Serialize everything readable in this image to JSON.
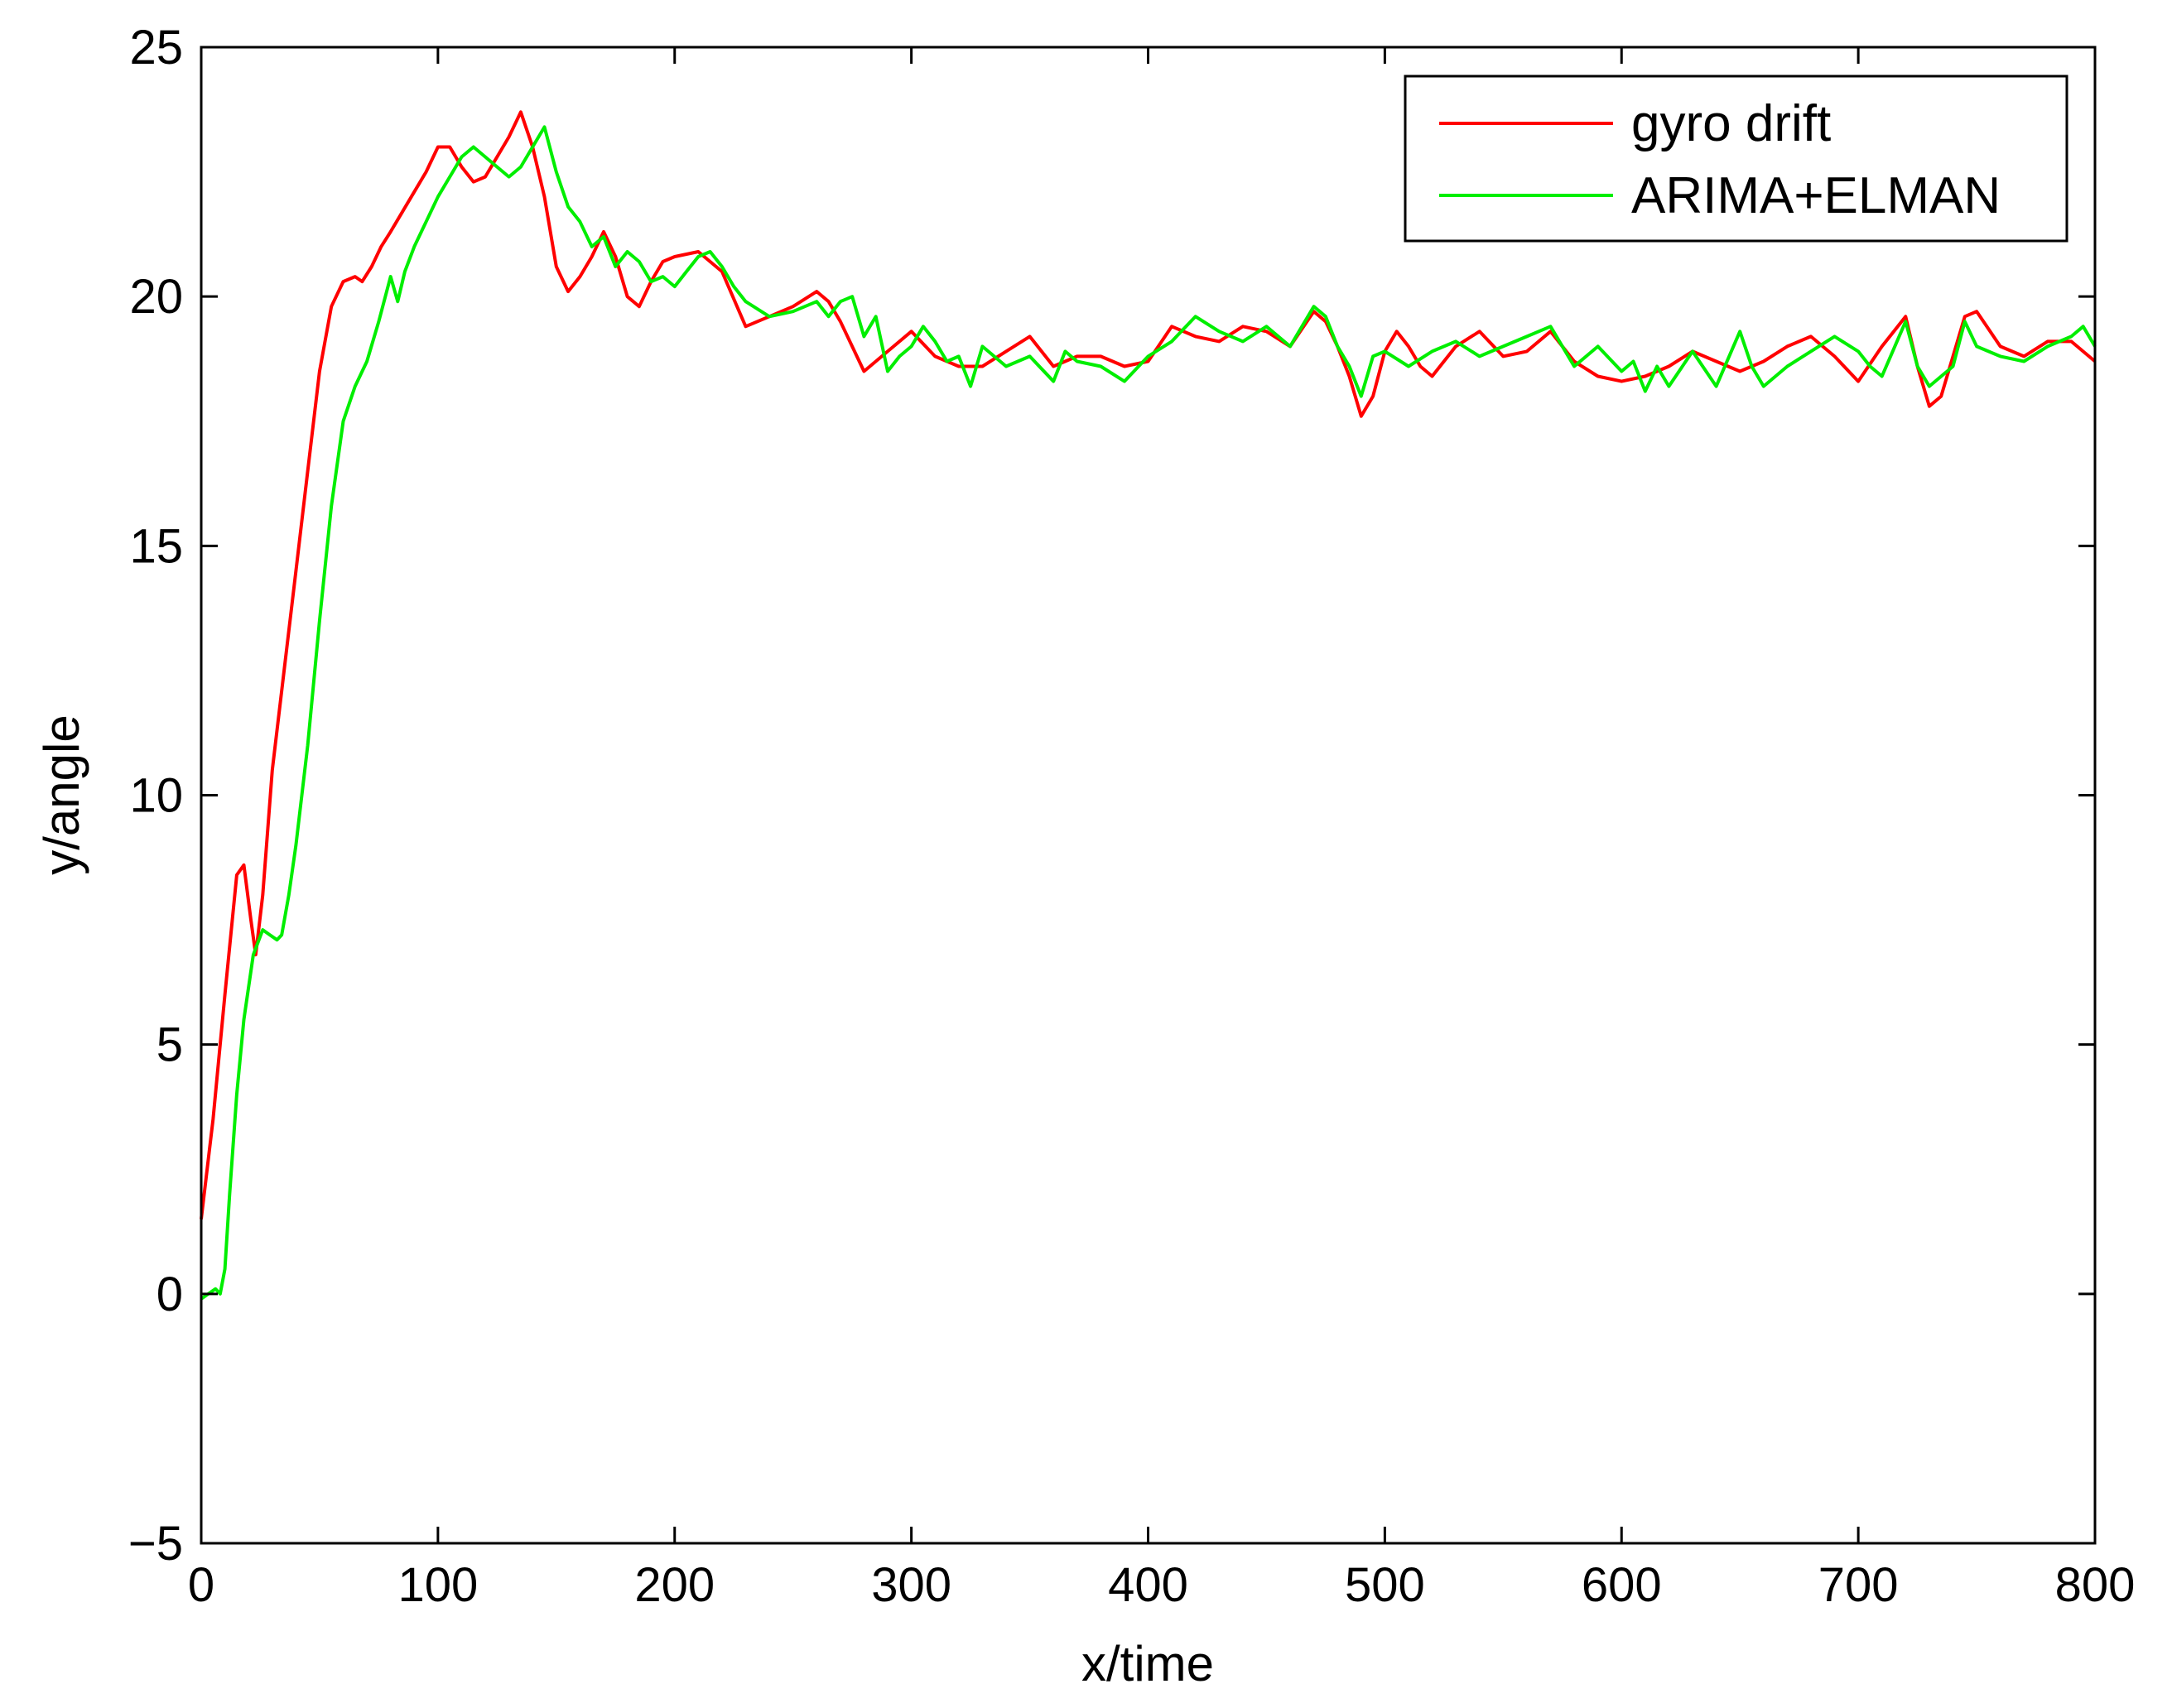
{
  "chart_data": {
    "type": "line",
    "xlabel": "x/time",
    "ylabel": "y/angle",
    "xlim": [
      0,
      800
    ],
    "ylim": [
      -5,
      25
    ],
    "xticks": [
      0,
      100,
      200,
      300,
      400,
      500,
      600,
      700,
      800
    ],
    "yticks": [
      -5,
      0,
      5,
      10,
      15,
      20,
      25
    ],
    "ytick_labels": [
      "−5",
      "0",
      "5",
      "10",
      "15",
      "20",
      "25"
    ],
    "grid": false,
    "legend_position": "top-right",
    "series": [
      {
        "name": "gyro drift",
        "color": "#ff0000",
        "x": [
          0,
          5,
          10,
          15,
          18,
          21,
          23,
          26,
          30,
          35,
          40,
          45,
          50,
          55,
          60,
          65,
          68,
          72,
          76,
          80,
          85,
          90,
          95,
          100,
          105,
          110,
          115,
          120,
          125,
          130,
          135,
          140,
          145,
          150,
          155,
          160,
          165,
          170,
          175,
          180,
          185,
          190,
          195,
          200,
          210,
          220,
          230,
          240,
          250,
          260,
          265,
          270,
          280,
          290,
          300,
          310,
          320,
          330,
          340,
          350,
          360,
          370,
          380,
          390,
          400,
          410,
          420,
          430,
          440,
          450,
          460,
          470,
          475,
          480,
          485,
          490,
          495,
          500,
          505,
          510,
          515,
          520,
          530,
          540,
          550,
          560,
          570,
          580,
          590,
          600,
          610,
          620,
          630,
          640,
          650,
          660,
          670,
          680,
          690,
          700,
          710,
          720,
          725,
          730,
          735,
          740,
          745,
          750,
          760,
          770,
          780,
          790,
          800
        ],
        "values": [
          1.5,
          3.5,
          6.0,
          8.4,
          8.6,
          7.5,
          6.8,
          8.0,
          10.5,
          12.5,
          14.5,
          16.5,
          18.5,
          19.8,
          20.3,
          20.4,
          20.3,
          20.6,
          21.0,
          21.3,
          21.7,
          22.1,
          22.5,
          23.0,
          23.0,
          22.6,
          22.3,
          22.4,
          22.8,
          23.2,
          23.7,
          23.0,
          22.0,
          20.6,
          20.1,
          20.4,
          20.8,
          21.3,
          20.8,
          20.0,
          19.8,
          20.3,
          20.7,
          20.8,
          20.9,
          20.5,
          19.4,
          19.6,
          19.8,
          20.1,
          19.9,
          19.5,
          18.5,
          18.9,
          19.3,
          18.8,
          18.6,
          18.6,
          18.9,
          19.2,
          18.6,
          18.8,
          18.8,
          18.6,
          18.7,
          19.4,
          19.2,
          19.1,
          19.4,
          19.3,
          19.0,
          19.7,
          19.5,
          19.0,
          18.4,
          17.6,
          18.0,
          18.9,
          19.3,
          19.0,
          18.6,
          18.4,
          19.0,
          19.3,
          18.8,
          18.9,
          19.3,
          18.7,
          18.4,
          18.3,
          18.4,
          18.6,
          18.9,
          18.7,
          18.5,
          18.7,
          19.0,
          19.2,
          18.8,
          18.3,
          19.0,
          19.6,
          18.6,
          17.8,
          18.0,
          18.8,
          19.6,
          19.7,
          19.0,
          18.8,
          19.1,
          19.1,
          18.7
        ]
      },
      {
        "name": "ARIMA+ELMAN",
        "color": "#00ee00",
        "x": [
          0,
          3,
          6,
          8,
          10,
          12,
          15,
          18,
          22,
          26,
          29,
          32,
          34,
          37,
          40,
          45,
          50,
          55,
          60,
          65,
          70,
          75,
          80,
          83,
          86,
          90,
          95,
          100,
          105,
          110,
          115,
          120,
          125,
          130,
          135,
          140,
          145,
          150,
          155,
          160,
          165,
          170,
          175,
          180,
          185,
          190,
          195,
          200,
          205,
          210,
          215,
          220,
          225,
          230,
          240,
          250,
          260,
          265,
          270,
          275,
          280,
          285,
          290,
          295,
          300,
          305,
          310,
          315,
          320,
          325,
          330,
          340,
          350,
          360,
          365,
          370,
          380,
          390,
          400,
          410,
          420,
          430,
          440,
          450,
          460,
          470,
          475,
          480,
          485,
          490,
          495,
          500,
          510,
          520,
          530,
          540,
          550,
          560,
          570,
          580,
          590,
          600,
          605,
          610,
          615,
          620,
          630,
          640,
          650,
          655,
          660,
          670,
          680,
          690,
          700,
          705,
          710,
          720,
          725,
          730,
          740,
          745,
          750,
          760,
          770,
          780,
          790,
          795,
          800
        ],
        "values": [
          -0.1,
          0.0,
          0.1,
          0.0,
          0.5,
          2.0,
          4.0,
          5.5,
          6.8,
          7.3,
          7.2,
          7.1,
          7.2,
          8.0,
          9.0,
          11.0,
          13.5,
          15.8,
          17.5,
          18.2,
          18.7,
          19.5,
          20.4,
          19.9,
          20.5,
          21.0,
          21.5,
          22.0,
          22.4,
          22.8,
          23.0,
          22.8,
          22.6,
          22.4,
          22.6,
          23.0,
          23.4,
          22.5,
          21.8,
          21.5,
          21.0,
          21.2,
          20.6,
          20.9,
          20.7,
          20.3,
          20.4,
          20.2,
          20.5,
          20.8,
          20.9,
          20.6,
          20.2,
          19.9,
          19.6,
          19.7,
          19.9,
          19.6,
          19.9,
          20.0,
          19.2,
          19.6,
          18.5,
          18.8,
          19.0,
          19.4,
          19.1,
          18.7,
          18.8,
          18.2,
          19.0,
          18.6,
          18.8,
          18.3,
          18.9,
          18.7,
          18.6,
          18.3,
          18.8,
          19.1,
          19.6,
          19.3,
          19.1,
          19.4,
          19.0,
          19.8,
          19.6,
          19.0,
          18.6,
          18.0,
          18.8,
          18.9,
          18.6,
          18.9,
          19.1,
          18.8,
          19.0,
          19.2,
          19.4,
          18.6,
          19.0,
          18.5,
          18.7,
          18.1,
          18.6,
          18.2,
          18.9,
          18.2,
          19.3,
          18.6,
          18.2,
          18.6,
          18.9,
          19.2,
          18.9,
          18.6,
          18.4,
          19.5,
          18.6,
          18.2,
          18.6,
          19.5,
          19.0,
          18.8,
          18.7,
          19.0,
          19.2,
          19.4,
          19.0
        ]
      }
    ]
  }
}
